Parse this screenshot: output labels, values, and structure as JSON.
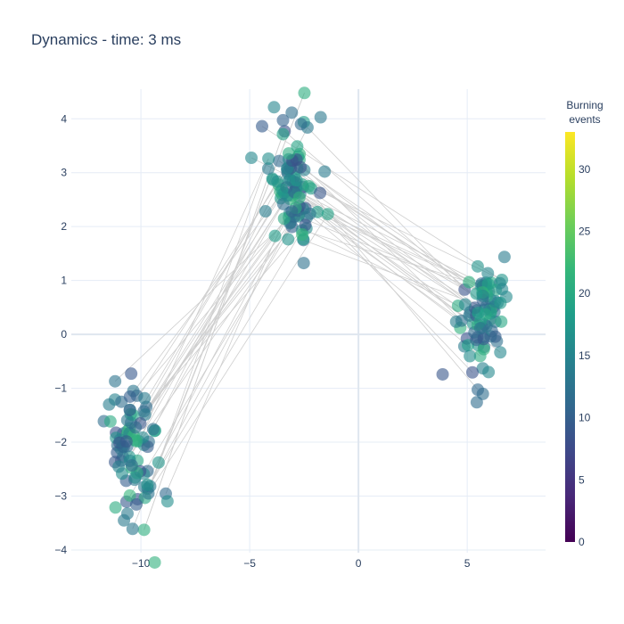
{
  "chart_data": {
    "type": "scatter",
    "title": "Dynamics - time: 3 ms",
    "xlabel": "",
    "ylabel": "",
    "xlim": [
      -13.2,
      8.6
    ],
    "ylim": [
      -4.05,
      4.55
    ],
    "x_ticks": [
      -10,
      -5,
      0,
      5
    ],
    "y_ticks": [
      -4,
      -3,
      -2,
      -1,
      0,
      1,
      2,
      3,
      4
    ],
    "x_tick_labels": [
      "−10",
      "−5",
      "0",
      "5"
    ],
    "y_tick_labels": [
      "−4",
      "−3",
      "−2",
      "−1",
      "0",
      "1",
      "2",
      "3",
      "4"
    ],
    "grid": true,
    "colorbar": {
      "title_line1": "Burning",
      "title_line2": "events",
      "range": [
        0,
        33
      ],
      "ticks": [
        0,
        5,
        10,
        15,
        20,
        25,
        30
      ],
      "tick_labels": [
        "0",
        "5",
        "10",
        "15",
        "20",
        "25",
        "30"
      ],
      "colorscale": "viridis"
    },
    "clusters": [
      {
        "name": "",
        "center": [
          -10.4,
          -2.1
        ],
        "sx": 0.75,
        "sy": 0.55,
        "n": 85,
        "rot": -0.62
      },
      {
        "name": "",
        "center": [
          -3.0,
          2.75
        ],
        "sx": 0.55,
        "sy": 0.55,
        "n": 95,
        "rot": 0.1
      },
      {
        "name": "",
        "center": [
          5.6,
          0.35
        ],
        "sx": 0.52,
        "sy": 0.55,
        "n": 85,
        "rot": 0.1
      }
    ],
    "edges_count": 60
  }
}
